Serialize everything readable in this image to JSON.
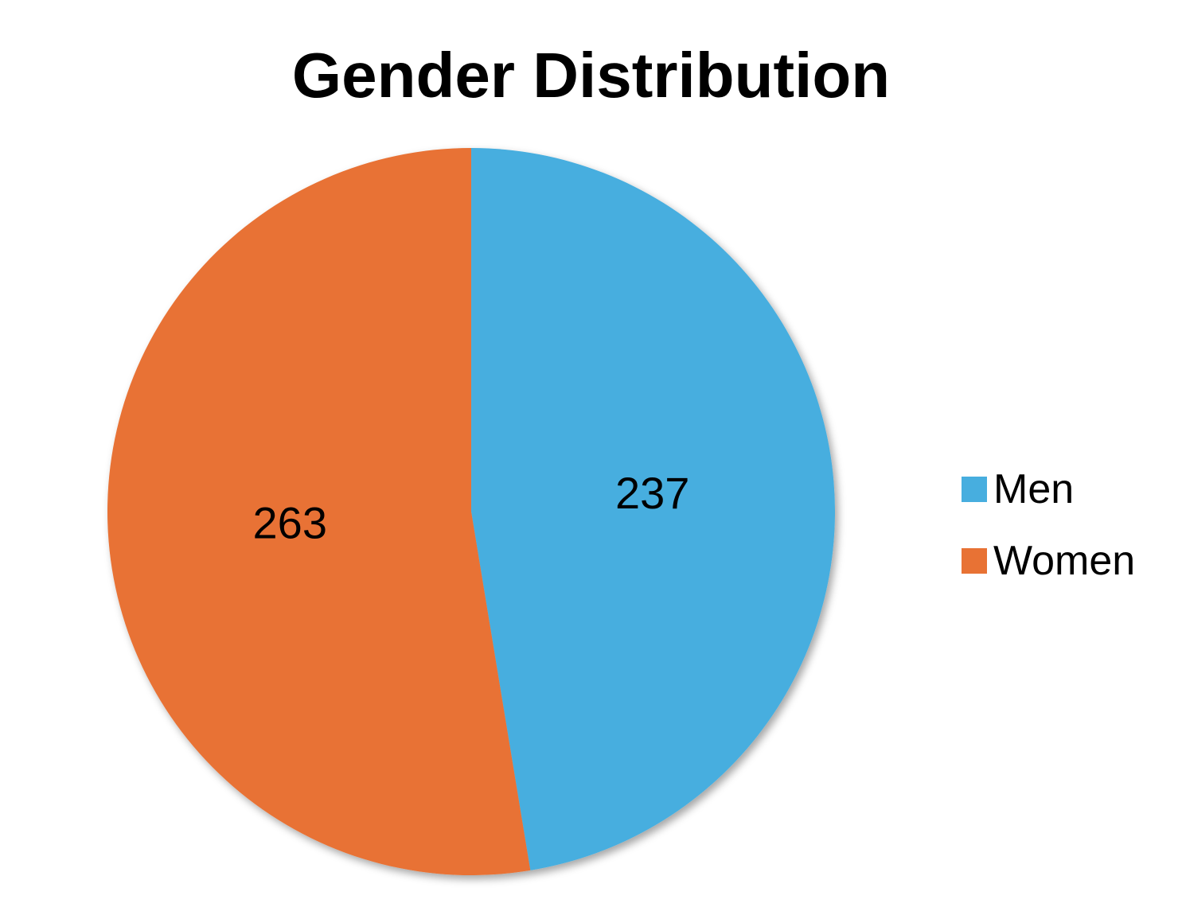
{
  "chart_data": {
    "type": "pie",
    "title": "Gender Distribution",
    "categories": [
      "Men",
      "Women"
    ],
    "values": [
      237,
      263
    ],
    "colors": [
      "#47AEDF",
      "#E87234"
    ],
    "legend_position": "right"
  }
}
